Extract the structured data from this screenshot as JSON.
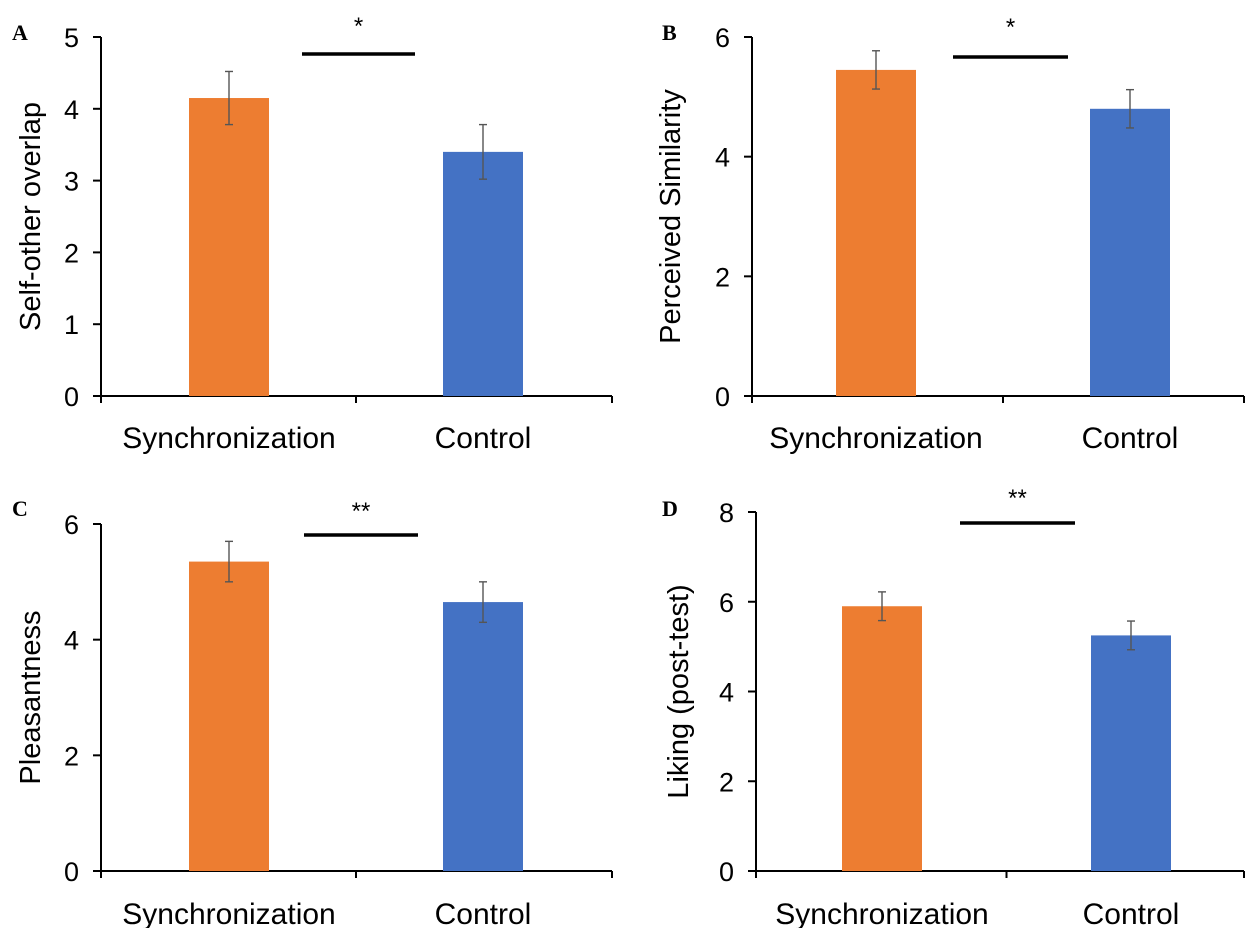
{
  "chart_data": [
    {
      "type": "bar",
      "panel": "A",
      "ylabel": "Self-other overlap",
      "categories": [
        "Synchronization",
        "Control"
      ],
      "values": [
        4.15,
        3.4
      ],
      "errors": [
        0.37,
        0.38
      ],
      "ylim": [
        0,
        5
      ],
      "yticks": [
        0,
        1,
        2,
        3,
        4,
        5
      ],
      "significance": "*",
      "colors": [
        "#ED7D31",
        "#4472C4"
      ],
      "grid": false
    },
    {
      "type": "bar",
      "panel": "B",
      "ylabel": "Perceived Similarity",
      "categories": [
        "Synchronization",
        "Control"
      ],
      "values": [
        5.45,
        4.8
      ],
      "errors": [
        0.32,
        0.32
      ],
      "ylim": [
        0,
        6
      ],
      "yticks": [
        0,
        2,
        4,
        6
      ],
      "significance": "*",
      "colors": [
        "#ED7D31",
        "#4472C4"
      ],
      "grid": false
    },
    {
      "type": "bar",
      "panel": "C",
      "ylabel": "Pleasantness",
      "categories": [
        "Synchronization",
        "Control"
      ],
      "values": [
        5.35,
        4.65
      ],
      "errors": [
        0.35,
        0.35
      ],
      "ylim": [
        0,
        6
      ],
      "yticks": [
        0,
        2,
        4,
        6
      ],
      "significance": "**",
      "colors": [
        "#ED7D31",
        "#4472C4"
      ],
      "grid": false
    },
    {
      "type": "bar",
      "panel": "D",
      "ylabel": "Liking (post-test)",
      "categories": [
        "Synchronization",
        "Control"
      ],
      "values": [
        5.9,
        5.25
      ],
      "errors": [
        0.32,
        0.32
      ],
      "ylim": [
        0,
        8
      ],
      "yticks": [
        0,
        2,
        4,
        6,
        8
      ],
      "significance": "**",
      "colors": [
        "#ED7D31",
        "#4472C4"
      ],
      "grid": false
    }
  ]
}
